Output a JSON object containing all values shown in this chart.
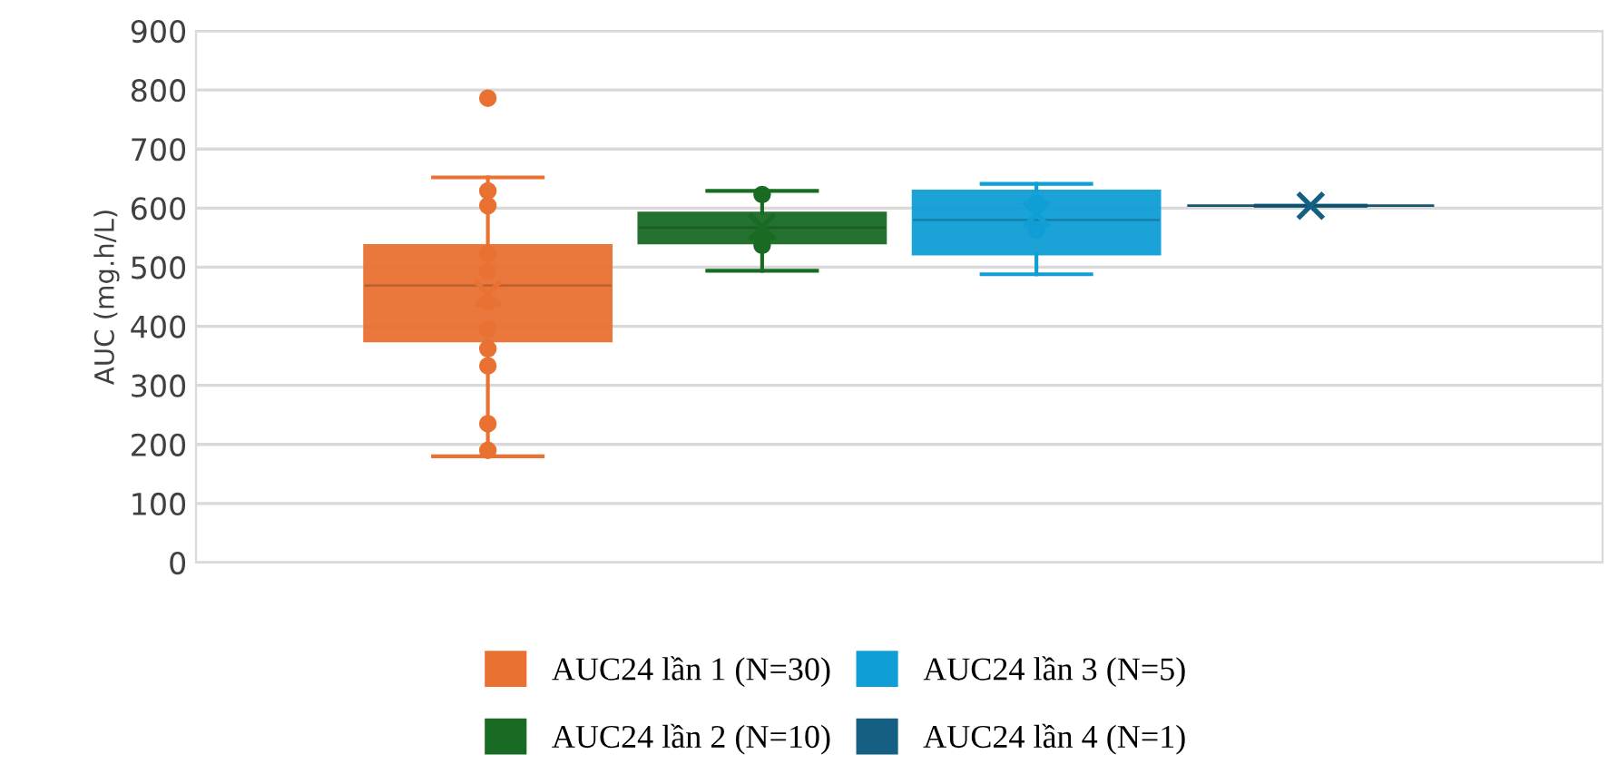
{
  "chart_data": {
    "type": "box",
    "ylabel": "AUC (mg.h/L)",
    "categories": [
      null
    ],
    "ylim": [
      0,
      900
    ],
    "yticks": [
      0,
      100,
      200,
      300,
      400,
      500,
      600,
      700,
      800,
      900
    ],
    "grid": "y",
    "legend": "bottom",
    "tick_labels": "y",
    "series": [
      {
        "name": "AUC24 lần 1 (N=30)",
        "color": "#e97132",
        "boxes": [
          {
            "low": 180,
            "q1": 375,
            "median": 469,
            "q3": 537,
            "high": 652,
            "mean": 455,
            "outliers": [
              786,
              629,
              604,
              523,
              493,
              441,
              395,
              362,
              333,
              235,
              190
            ]
          }
        ]
      },
      {
        "name": "AUC24 lần 2 (N=10)",
        "color": "#196b24",
        "boxes": [
          {
            "low": 494,
            "q1": 541,
            "median": 567,
            "q3": 592,
            "high": 629,
            "mean": 568,
            "outliers": [
              623,
              549,
              537
            ]
          }
        ]
      },
      {
        "name": "AUC24 lần 3 (N=5)",
        "color": "#0f9ed5",
        "boxes": [
          {
            "low": 488,
            "q1": 522,
            "median": 580,
            "q3": 629,
            "high": 641,
            "mean": 590,
            "outliers": [
              608,
              563
            ]
          }
        ]
      },
      {
        "name": "AUC24 lần 4 (N=1)",
        "color": "#156082",
        "boxes": [
          {
            "low": 604,
            "q1": 604,
            "median": 604,
            "q3": 604,
            "high": 604,
            "mean": 604
          }
        ]
      }
    ]
  }
}
